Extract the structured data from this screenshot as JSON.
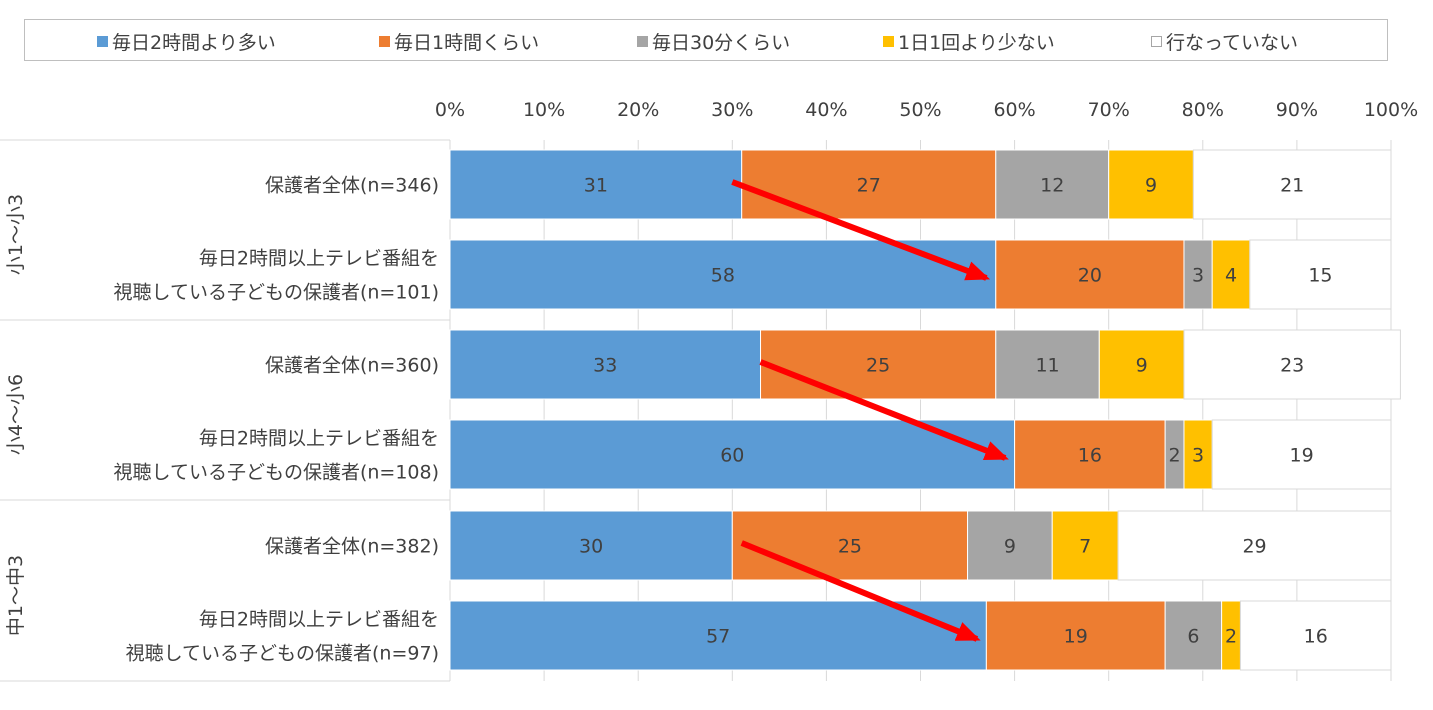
{
  "legend": {
    "items": [
      {
        "label": "毎日2時間より多い",
        "color": "#5b9bd5"
      },
      {
        "label": "毎日1時間くらい",
        "color": "#ed7d31"
      },
      {
        "label": "毎日30分くらい",
        "color": "#a5a5a5"
      },
      {
        "label": "1日1回より少ない",
        "color": "#ffc000"
      },
      {
        "label": "行なっていない",
        "color": "#ffffff"
      }
    ]
  },
  "chart_data": {
    "type": "bar",
    "orientation": "horizontal",
    "stacked": true,
    "percent": true,
    "xlim": [
      0,
      100
    ],
    "x_ticks": [
      "0%",
      "10%",
      "20%",
      "30%",
      "40%",
      "50%",
      "60%",
      "70%",
      "80%",
      "90%",
      "100%"
    ],
    "legend_position": "top",
    "grid": true,
    "series": [
      {
        "name": "毎日2時間より多い",
        "color": "#5b9bd5"
      },
      {
        "name": "毎日1時間くらい",
        "color": "#ed7d31"
      },
      {
        "name": "毎日30分くらい",
        "color": "#a5a5a5"
      },
      {
        "name": "1日1回より少ない",
        "color": "#ffc000"
      },
      {
        "name": "行なっていない",
        "color": "#ffffff"
      }
    ],
    "groups": [
      {
        "label": "小1～小3",
        "rows": [
          {
            "label_lines": [
              "保護者全体(n=346)"
            ],
            "values": [
              31,
              27,
              12,
              9,
              21
            ]
          },
          {
            "label_lines": [
              "毎日2時間以上テレビ番組を",
              "視聴している子どもの保護者(n=101)"
            ],
            "values": [
              58,
              20,
              3,
              4,
              15
            ]
          }
        ]
      },
      {
        "label": "小4～小6",
        "rows": [
          {
            "label_lines": [
              "保護者全体(n=360)"
            ],
            "values": [
              33,
              25,
              11,
              9,
              23
            ]
          },
          {
            "label_lines": [
              "毎日2時間以上テレビ番組を",
              "視聴している子どもの保護者(n=108)"
            ],
            "values": [
              60,
              16,
              2,
              3,
              19
            ]
          }
        ]
      },
      {
        "label": "中1～中3",
        "rows": [
          {
            "label_lines": [
              "保護者全体(n=382)"
            ],
            "values": [
              30,
              25,
              9,
              7,
              29
            ]
          },
          {
            "label_lines": [
              "毎日2時間以上テレビ番組を",
              "視聴している子どもの保護者(n=97)"
            ],
            "values": [
              57,
              19,
              6,
              2,
              16
            ]
          }
        ]
      }
    ],
    "annotations": [
      {
        "type": "arrow",
        "color": "#ff0000",
        "group": 0,
        "from_value": 30,
        "to_value": 57
      },
      {
        "type": "arrow",
        "color": "#ff0000",
        "group": 1,
        "from_value": 33,
        "to_value": 59
      },
      {
        "type": "arrow",
        "color": "#ff0000",
        "group": 2,
        "from_value": 31,
        "to_value": 56
      }
    ]
  }
}
